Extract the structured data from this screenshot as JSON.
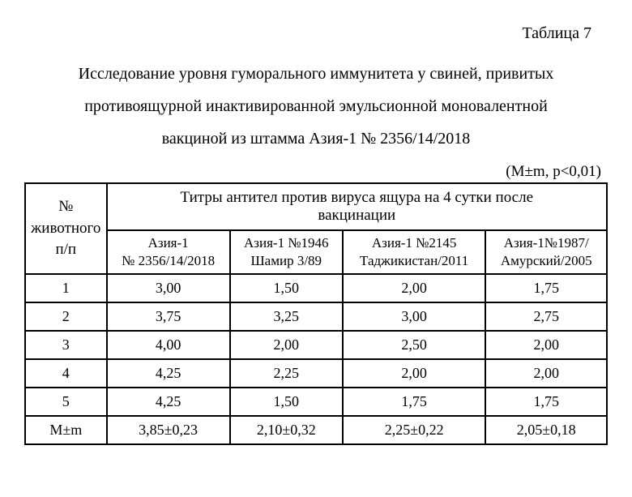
{
  "table_number": "Таблица 7",
  "title_line1": "Исследование уровня гуморального иммунитета у свиней, привитых",
  "title_line2": "противоящурной инактивированной эмульсионной моновалентной",
  "title_line3": "вакциной из штамма Азия-1 № 2356/14/2018",
  "stat_note": "(M±m, p<0,01)",
  "row_header_l1": "№",
  "row_header_l2": "животного",
  "row_header_l3": "п/п",
  "super_header_l1": "Титры антител против вируса ящура на 4 сутки после",
  "super_header_l2": "вакцинации",
  "col_headers": {
    "c1_l1": "Азия-1",
    "c1_l2": "№ 2356/14/2018",
    "c2_l1": "Азия-1 №1946",
    "c2_l2": "Шамир 3/89",
    "c3_l1": "Азия-1 №2145",
    "c3_l2": "Таджикистан/2011",
    "c4_l1": "Азия-1№1987/",
    "c4_l2": "Амурский/2005"
  },
  "rows": [
    {
      "n": "1",
      "v1": "3,00",
      "v2": "1,50",
      "v3": "2,00",
      "v4": "1,75"
    },
    {
      "n": "2",
      "v1": "3,75",
      "v2": "3,25",
      "v3": "3,00",
      "v4": "2,75"
    },
    {
      "n": "3",
      "v1": "4,00",
      "v2": "2,00",
      "v3": "2,50",
      "v4": "2,00"
    },
    {
      "n": "4",
      "v1": "4,25",
      "v2": "2,25",
      "v3": "2,00",
      "v4": "2,00"
    },
    {
      "n": "5",
      "v1": "4,25",
      "v2": "1,50",
      "v3": "1,75",
      "v4": "1,75"
    }
  ],
  "summary": {
    "n": "M±m",
    "v1": "3,85±0,23",
    "v2": "2,10±0,32",
    "v3": "2,25±0,22",
    "v4": "2,05±0,18"
  },
  "style": {
    "border_color": "#000000",
    "background_color": "#ffffff",
    "text_color": "#000000",
    "font_family": "Times New Roman",
    "title_fontsize": 20,
    "table_fontsize": 18,
    "header_fontsize": 19,
    "subheader_fontsize": 17,
    "border_width": 2,
    "column_widths_pct": [
      14,
      21.5,
      21.5,
      21.5,
      21.5
    ]
  }
}
